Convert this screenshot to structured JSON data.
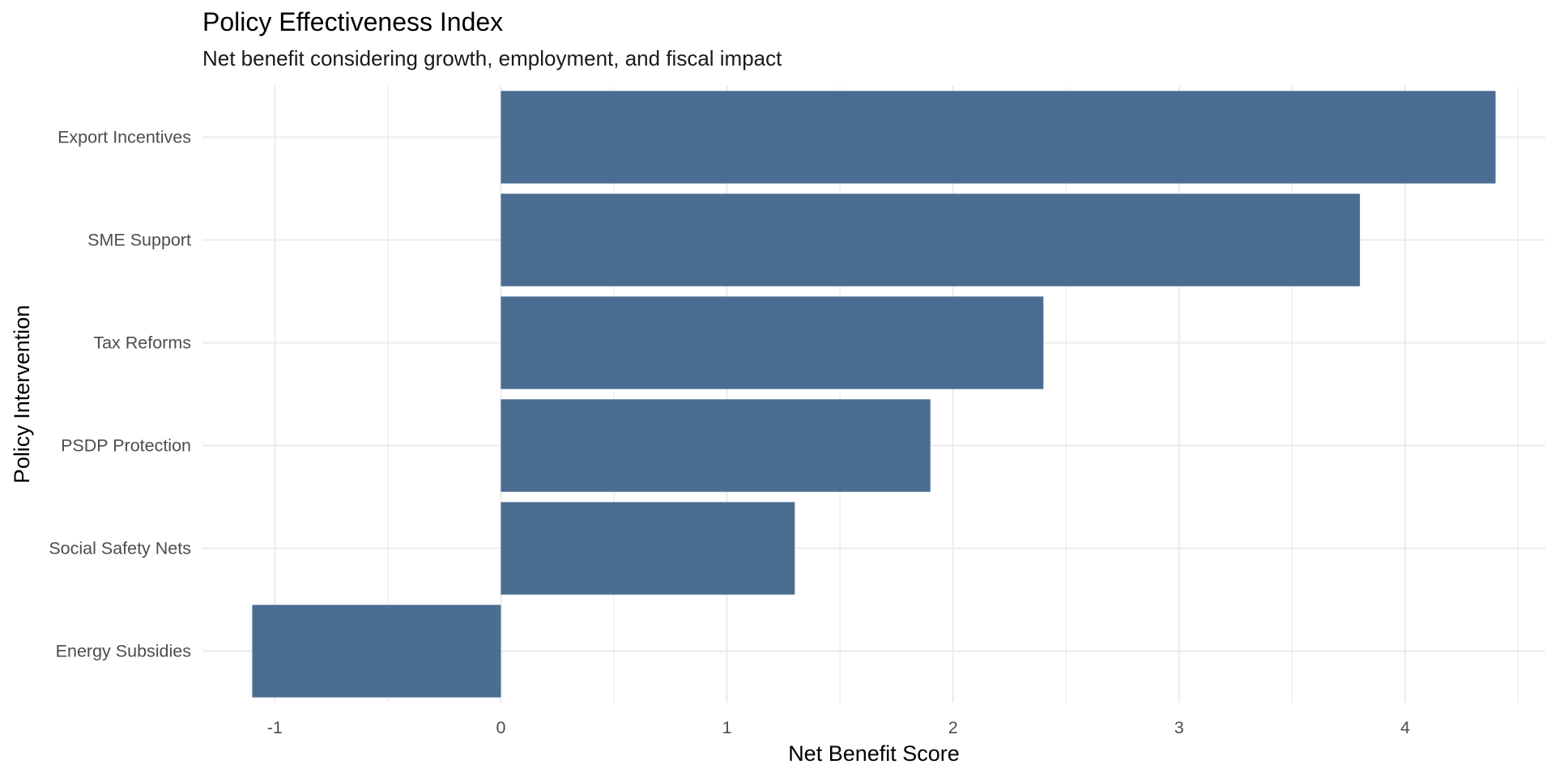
{
  "chart_data": {
    "type": "bar",
    "orientation": "horizontal",
    "title": "Policy Effectiveness Index",
    "subtitle": "Net benefit considering growth, employment, and fiscal impact",
    "xlabel": "Net Benefit Score",
    "ylabel": "Policy Intervention",
    "categories": [
      "Export Incentives",
      "SME Support",
      "Tax Reforms",
      "PSDP Protection",
      "Social Safety Nets",
      "Energy Subsidies"
    ],
    "values": [
      4.4,
      3.8,
      2.4,
      1.9,
      1.3,
      -1.1
    ],
    "xlim": [
      -1.32,
      4.62
    ],
    "x_ticks": [
      -1,
      0,
      1,
      2,
      3,
      4
    ],
    "x_tick_labels": [
      "-1",
      "0",
      "1",
      "2",
      "3",
      "4"
    ],
    "grid": true,
    "legend": "none",
    "colors": {
      "bar": "#4a6d91",
      "grid": "#ebebeb",
      "background": "#ffffff"
    }
  }
}
